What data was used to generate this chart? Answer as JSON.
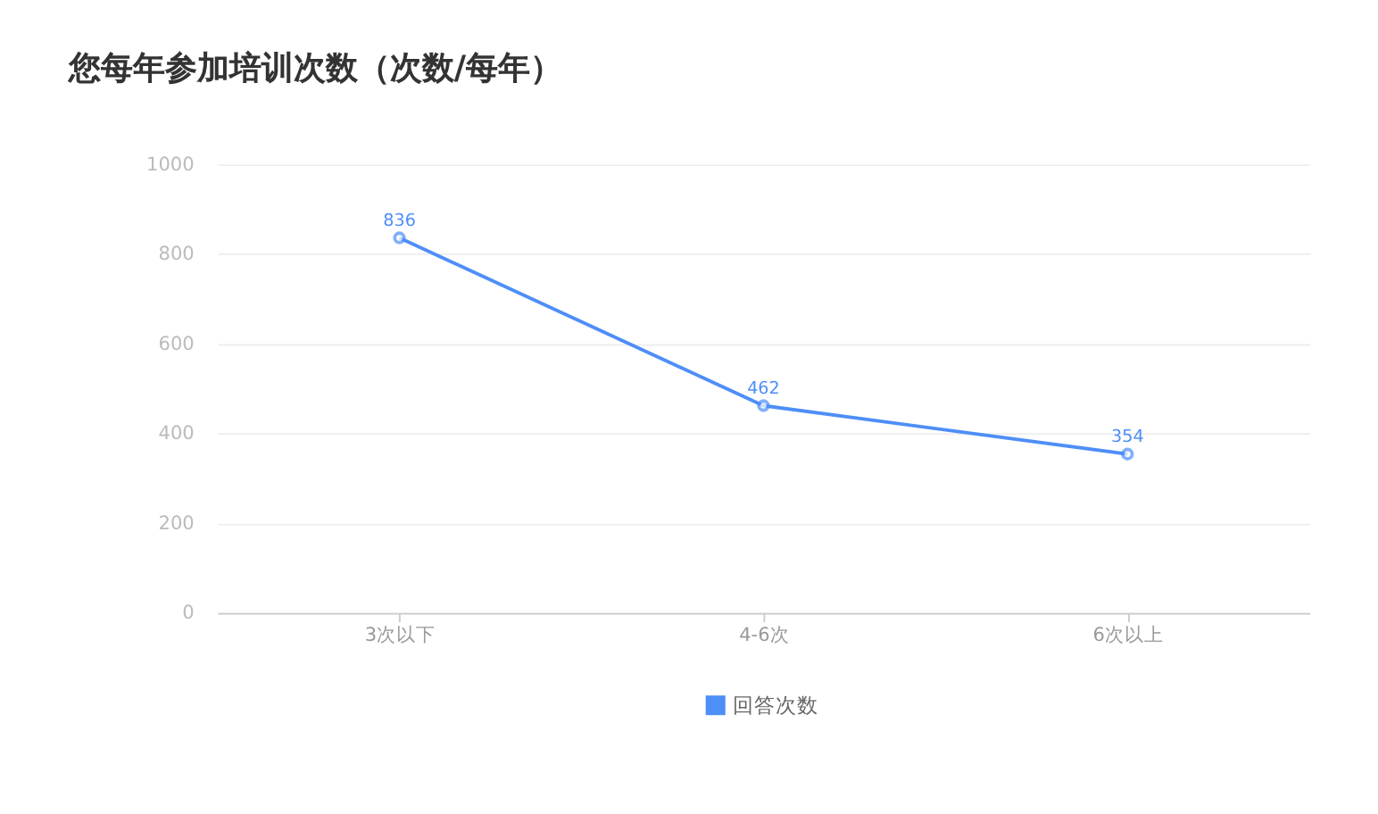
{
  "chart_data": {
    "type": "line",
    "title": "您每年参加培训次数（次数/每年）",
    "categories": [
      "3次以下",
      "4-6次",
      "6次以上"
    ],
    "series": [
      {
        "name": "回答次数",
        "color": "#4e8ef7",
        "values": [
          836,
          462,
          354
        ]
      }
    ],
    "ylim": [
      0,
      1000
    ],
    "yticks": [
      0,
      200,
      400,
      600,
      800,
      1000
    ],
    "grid": "y",
    "legend": "bottom",
    "marker": "circle",
    "line_style": "solid",
    "data_labels": true
  }
}
